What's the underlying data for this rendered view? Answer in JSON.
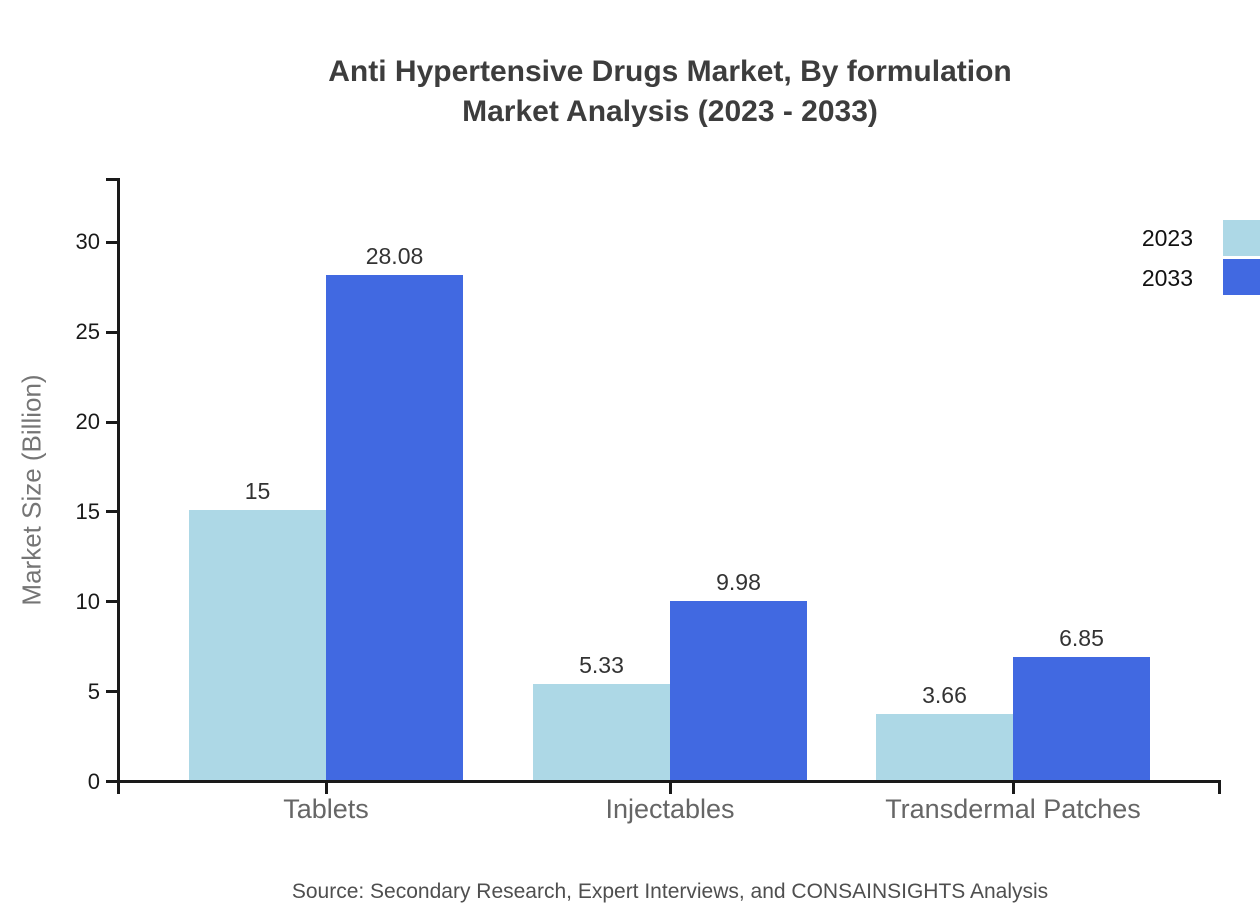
{
  "title": {
    "line1": "Anti Hypertensive Drugs Market, By formulation",
    "line2": "Market Analysis (2023 - 2033)"
  },
  "source": "Source: Secondary Research, Expert Interviews, and CONSAINSIGHTS Analysis",
  "chart_data": {
    "type": "bar",
    "title": "Anti Hypertensive Drugs Market, By formulation Market Analysis (2023 - 2033)",
    "categories": [
      "Tablets",
      "Injectables",
      "Transdermal Patches"
    ],
    "series": [
      {
        "name": "2023",
        "color": "#ADD8E6",
        "values": [
          15,
          5.33,
          3.66
        ]
      },
      {
        "name": "2033",
        "color": "#4169E1",
        "values": [
          28.08,
          9.98,
          6.85
        ]
      }
    ],
    "value_labels": [
      [
        "15",
        "5.33",
        "3.66"
      ],
      [
        "28.08",
        "9.98",
        "6.85"
      ]
    ],
    "xlabel": "",
    "ylabel": "Market Size (Billion)",
    "yticks": [
      0,
      5,
      10,
      15,
      20,
      25,
      30
    ],
    "ylim": [
      0,
      33.5
    ],
    "grid": false,
    "legend_position": "top-right",
    "axis_color": "#1a1a1a"
  }
}
